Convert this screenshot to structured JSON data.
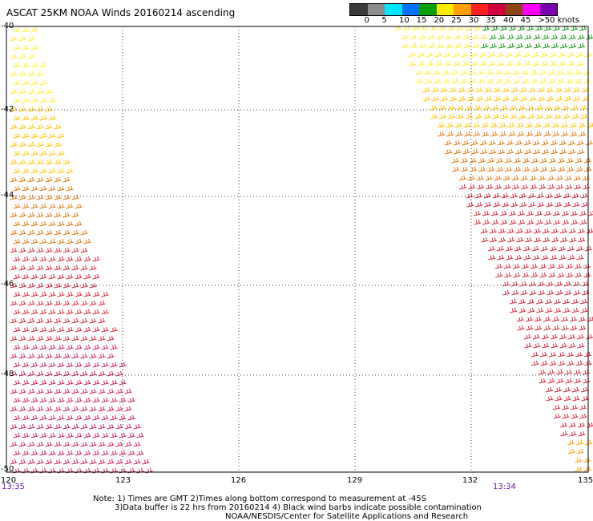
{
  "title": "ASCAT 25KM NOAA Winds 20160214 ascending",
  "legend": {
    "colors": [
      "#3a3a3a",
      "#8c8c8c",
      "#00e5ff",
      "#0070ff",
      "#00a000",
      "#ffea00",
      "#ffa000",
      "#ff2020",
      "#d00040",
      "#8b4513",
      "#ff00ff",
      "#7a00b0"
    ],
    "labels": [
      "0",
      "5",
      "10",
      "15",
      "20",
      "25",
      "30",
      "35",
      "40",
      "45",
      ">50 knots"
    ]
  },
  "axes": {
    "lat_labels": [
      "-40",
      "-42",
      "-44",
      "-46",
      "-48",
      "-50"
    ],
    "lon_labels": [
      "120",
      "123",
      "126",
      "129",
      "132",
      "135"
    ]
  },
  "swath_times": {
    "left": "13:35",
    "right": "13:34"
  },
  "notes": {
    "line1": "Note: 1) Times are GMT 2)Times along bottom correspond to measurement at -45S",
    "line2": "3)Data buffer is 22 hrs from 20160214 4) Black wind barbs indicate possible contamination",
    "line3": "NOAA/NESDIS/Center for Satellite Applications and Research"
  }
}
